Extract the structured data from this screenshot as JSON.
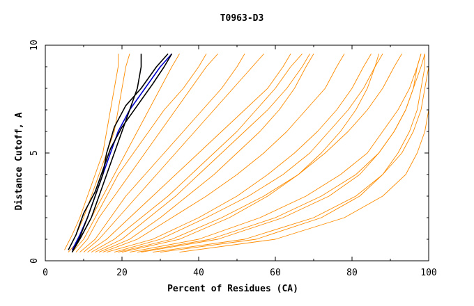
{
  "chart_data": {
    "type": "line",
    "title": "T0963-D3",
    "xlabel": "Percent of Residues (CA)",
    "ylabel": "Distance Cutoff, A",
    "xlim": [
      0,
      100
    ],
    "ylim": [
      0,
      10
    ],
    "x_ticks": [
      "0",
      "20",
      "40",
      "60",
      "80",
      "100"
    ],
    "y_ticks": [
      "0",
      "5",
      "10"
    ],
    "grid": false,
    "colors": {
      "models": "#ff8c00",
      "highlight_black": "#000000",
      "highlight_blue": "#0000cc"
    },
    "series": [
      {
        "color": "#0000cc",
        "x": [
          7,
          9,
          11,
          13,
          15,
          17,
          19,
          22,
          26,
          30,
          33
        ],
        "y": [
          0.5,
          1.2,
          2.0,
          3.0,
          4.0,
          5.0,
          6.0,
          7.0,
          8.0,
          9.0,
          9.6
        ]
      },
      {
        "color": "#000000",
        "x": [
          7,
          9,
          12,
          14,
          16,
          18,
          20,
          22,
          24,
          25,
          25
        ],
        "y": [
          0.4,
          1.0,
          2.0,
          3.0,
          4.0,
          5.0,
          6.0,
          7.0,
          8.0,
          9.0,
          9.6
        ]
      },
      {
        "color": "#000000",
        "x": [
          6,
          8,
          10,
          13,
          15,
          17,
          20,
          24,
          28,
          31,
          33
        ],
        "y": [
          0.5,
          1.2,
          2.2,
          3.2,
          4.2,
          5.2,
          6.2,
          7.2,
          8.2,
          9.0,
          9.6
        ]
      },
      {
        "color": "#000000",
        "x": [
          7,
          9,
          11,
          13,
          15,
          16,
          18,
          21,
          25,
          29,
          32
        ],
        "y": [
          0.4,
          1.1,
          2.0,
          3.0,
          4.0,
          5.0,
          6.2,
          7.2,
          8.0,
          9.0,
          9.6
        ]
      },
      {
        "color": "#ff8c00",
        "x": [
          5,
          7,
          9,
          11,
          13,
          15,
          16,
          17,
          18,
          19,
          19
        ],
        "y": [
          0.5,
          1.2,
          2.0,
          3.0,
          4.0,
          5.0,
          6.0,
          7.0,
          8.0,
          9.0,
          9.6
        ]
      },
      {
        "color": "#ff8c00",
        "x": [
          6,
          8,
          10,
          12,
          14,
          16,
          18,
          19,
          20,
          21,
          22
        ],
        "y": [
          0.5,
          1.2,
          2.0,
          3.0,
          4.0,
          5.0,
          6.0,
          7.0,
          8.0,
          9.0,
          9.6
        ]
      },
      {
        "color": "#ff8c00",
        "x": [
          6,
          9,
          12,
          15,
          18,
          21,
          24,
          27,
          30,
          33,
          35
        ],
        "y": [
          0.4,
          1.0,
          2.0,
          3.0,
          4.0,
          5.0,
          6.0,
          7.0,
          8.0,
          9.0,
          9.6
        ]
      },
      {
        "color": "#ff8c00",
        "x": [
          8,
          11,
          14,
          18,
          22,
          26,
          30,
          34,
          38,
          42,
          45
        ],
        "y": [
          0.4,
          1.0,
          2.0,
          3.0,
          4.0,
          5.0,
          6.0,
          7.0,
          8.0,
          9.0,
          9.6
        ]
      },
      {
        "color": "#ff8c00",
        "x": [
          10,
          14,
          19,
          24,
          29,
          34,
          39,
          44,
          49,
          54,
          57
        ],
        "y": [
          0.4,
          1.0,
          2.0,
          3.0,
          4.0,
          5.0,
          6.0,
          7.0,
          8.0,
          9.0,
          9.6
        ]
      },
      {
        "color": "#ff8c00",
        "x": [
          12,
          18,
          25,
          32,
          38,
          44,
          50,
          55,
          60,
          64,
          67
        ],
        "y": [
          0.4,
          1.0,
          2.0,
          3.0,
          4.0,
          5.0,
          6.0,
          7.0,
          8.0,
          9.0,
          9.6
        ]
      },
      {
        "color": "#ff8c00",
        "x": [
          15,
          24,
          33,
          42,
          50,
          57,
          63,
          68,
          73,
          76,
          78
        ],
        "y": [
          0.4,
          1.0,
          2.0,
          3.0,
          4.0,
          5.0,
          6.0,
          7.0,
          8.0,
          9.0,
          9.6
        ]
      },
      {
        "color": "#ff8c00",
        "x": [
          18,
          30,
          42,
          53,
          62,
          69,
          74,
          79,
          83,
          86,
          88
        ],
        "y": [
          0.4,
          1.0,
          2.0,
          3.0,
          4.0,
          5.0,
          6.0,
          7.0,
          8.0,
          9.0,
          9.6
        ]
      },
      {
        "color": "#ff8c00",
        "x": [
          22,
          40,
          56,
          68,
          77,
          84,
          88,
          92,
          95,
          97,
          98
        ],
        "y": [
          0.4,
          1.0,
          2.0,
          3.0,
          4.0,
          5.0,
          6.0,
          7.0,
          8.0,
          9.0,
          9.6
        ]
      },
      {
        "color": "#ff8c00",
        "x": [
          28,
          52,
          70,
          81,
          88,
          93,
          96,
          98,
          99,
          100,
          100
        ],
        "y": [
          0.4,
          1.0,
          2.0,
          3.0,
          4.0,
          5.0,
          6.0,
          7.0,
          8.0,
          9.0,
          9.6
        ]
      },
      {
        "color": "#ff8c00",
        "x": [
          35,
          60,
          78,
          88,
          94,
          97,
          99,
          100,
          100,
          100,
          100
        ],
        "y": [
          0.4,
          1.0,
          2.0,
          3.0,
          4.0,
          5.0,
          6.0,
          7.0,
          8.0,
          9.0,
          9.6
        ]
      },
      {
        "color": "#ff8c00",
        "x": [
          25,
          45,
          62,
          74,
          82,
          87,
          91,
          94,
          96,
          97,
          98
        ],
        "y": [
          0.4,
          1.0,
          2.0,
          3.0,
          4.0,
          5.0,
          6.0,
          7.0,
          8.0,
          9.0,
          9.6
        ]
      },
      {
        "color": "#ff8c00",
        "x": [
          20,
          35,
          48,
          58,
          66,
          72,
          77,
          81,
          84,
          86,
          87
        ],
        "y": [
          0.4,
          1.0,
          2.0,
          3.0,
          4.0,
          5.0,
          6.0,
          7.0,
          8.0,
          9.0,
          9.6
        ]
      },
      {
        "color": "#ff8c00",
        "x": [
          14,
          22,
          30,
          37,
          44,
          50,
          56,
          61,
          65,
          68,
          70
        ],
        "y": [
          0.4,
          1.0,
          2.0,
          3.0,
          4.0,
          5.0,
          6.0,
          7.0,
          8.0,
          9.0,
          9.6
        ]
      },
      {
        "color": "#ff8c00",
        "x": [
          9,
          13,
          17,
          21,
          26,
          31,
          36,
          41,
          46,
          50,
          52
        ],
        "y": [
          0.4,
          1.0,
          2.0,
          3.0,
          4.0,
          5.0,
          6.0,
          7.0,
          8.0,
          9.0,
          9.6
        ]
      },
      {
        "color": "#ff8c00",
        "x": [
          7,
          10,
          13,
          16,
          19,
          23,
          27,
          31,
          36,
          40,
          42
        ],
        "y": [
          0.4,
          1.0,
          2.0,
          3.0,
          4.0,
          5.0,
          6.0,
          7.0,
          8.0,
          9.0,
          9.6
        ]
      },
      {
        "color": "#ff8c00",
        "x": [
          16,
          28,
          40,
          50,
          58,
          65,
          71,
          76,
          80,
          83,
          85
        ],
        "y": [
          0.4,
          1.0,
          2.0,
          3.0,
          4.0,
          5.0,
          6.0,
          7.0,
          8.0,
          9.0,
          9.6
        ]
      },
      {
        "color": "#ff8c00",
        "x": [
          30,
          55,
          72,
          82,
          88,
          92,
          95,
          97,
          98,
          99,
          99
        ],
        "y": [
          0.4,
          1.0,
          2.0,
          3.0,
          4.0,
          5.0,
          6.0,
          7.0,
          8.0,
          9.0,
          9.6
        ]
      },
      {
        "color": "#ff8c00",
        "x": [
          11,
          16,
          22,
          28,
          34,
          40,
          46,
          52,
          58,
          62,
          64
        ],
        "y": [
          0.4,
          1.0,
          2.0,
          3.0,
          4.0,
          5.0,
          6.0,
          7.0,
          8.0,
          9.0,
          9.6
        ]
      },
      {
        "color": "#ff8c00",
        "x": [
          19,
          33,
          46,
          57,
          66,
          73,
          79,
          84,
          88,
          91,
          93
        ],
        "y": [
          0.4,
          1.0,
          2.0,
          3.0,
          4.0,
          5.0,
          6.0,
          7.0,
          8.0,
          9.0,
          9.6
        ]
      },
      {
        "color": "#ff8c00",
        "x": [
          24,
          43,
          60,
          72,
          81,
          87,
          91,
          94,
          96,
          98,
          99
        ],
        "y": [
          0.4,
          1.0,
          2.0,
          3.0,
          4.0,
          5.0,
          6.0,
          7.0,
          8.0,
          9.0,
          9.6
        ]
      },
      {
        "color": "#ff8c00",
        "x": [
          13,
          20,
          27,
          34,
          40,
          46,
          52,
          58,
          63,
          67,
          69
        ],
        "y": [
          0.4,
          1.0,
          2.0,
          3.0,
          4.0,
          5.0,
          6.0,
          7.0,
          8.0,
          9.0,
          9.6
        ]
      }
    ]
  }
}
